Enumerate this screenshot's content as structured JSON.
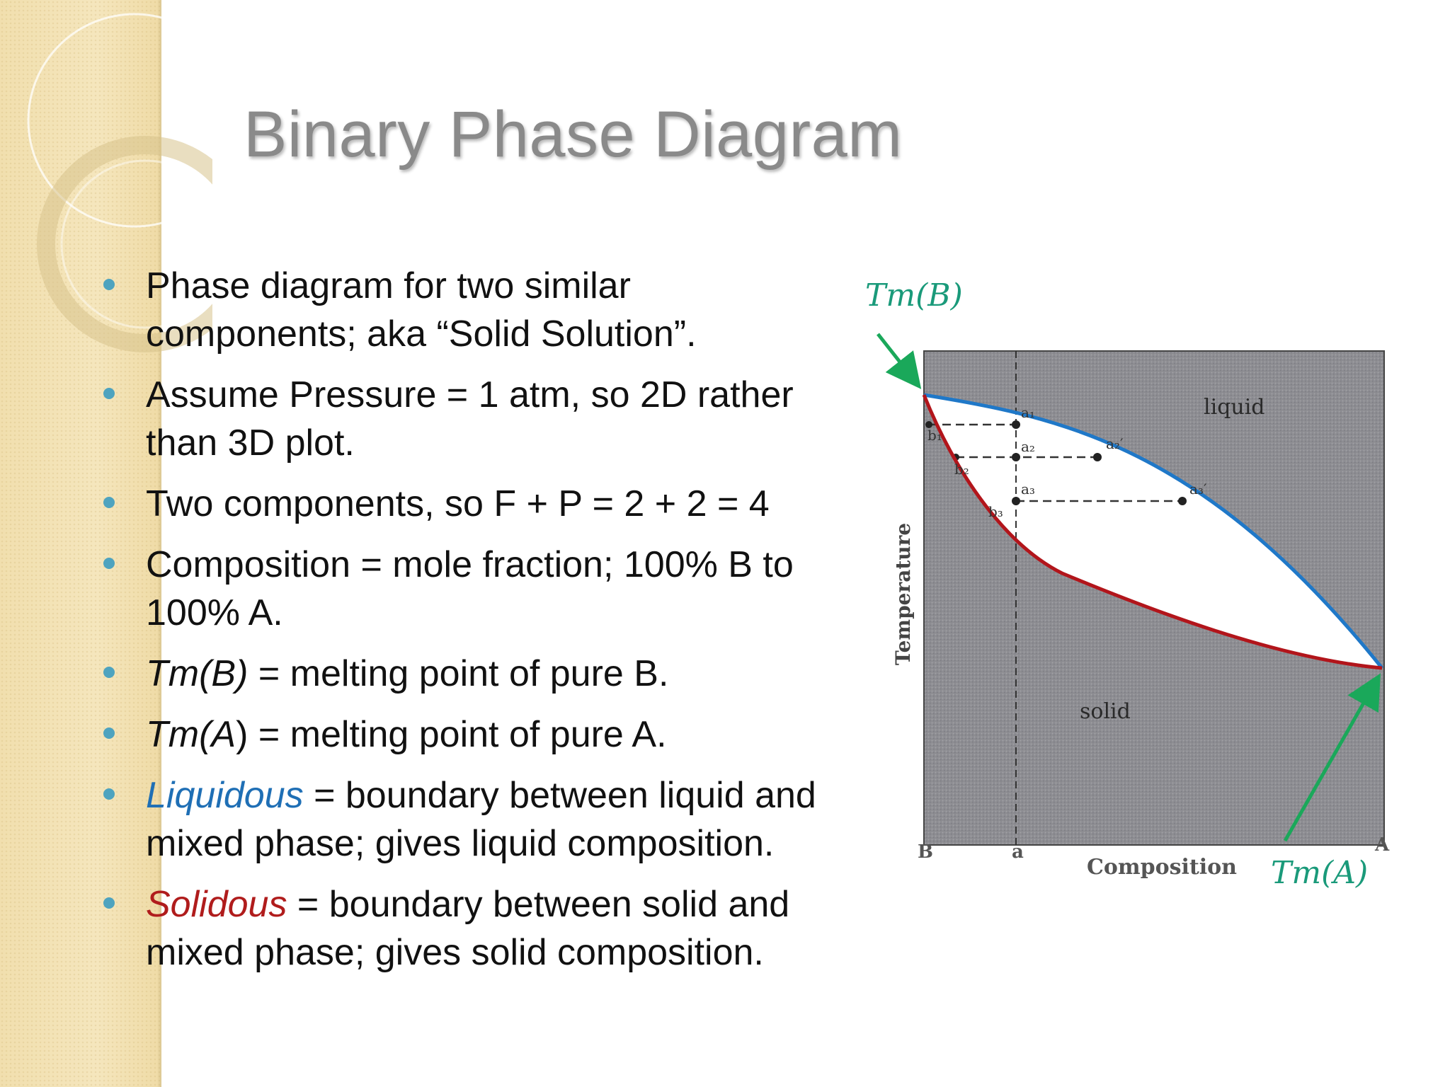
{
  "slide": {
    "title": "Binary Phase Diagram",
    "bullets": [
      {
        "parts": [
          {
            "text": "Phase diagram for two similar components; aka “Solid Solution”.",
            "style": "plain"
          }
        ]
      },
      {
        "parts": [
          {
            "text": "Assume Pressure = 1 atm, so 2D rather than 3D plot.",
            "style": "plain"
          }
        ]
      },
      {
        "parts": [
          {
            "text": "Two components, so F + P = 2 + 2 = 4",
            "style": "plain"
          }
        ]
      },
      {
        "parts": [
          {
            "text": "Composition = mole fraction; 100% B to 100% A.",
            "style": "plain"
          }
        ]
      },
      {
        "parts": [
          {
            "text": "Tm(B)",
            "style": "em"
          },
          {
            "text": " = melting point of pure B.",
            "style": "plain"
          }
        ]
      },
      {
        "parts": [
          {
            "text": "Tm(A",
            "style": "em"
          },
          {
            "text": ") = melting point of pure A.",
            "style": "plain"
          }
        ]
      },
      {
        "parts": [
          {
            "text": "Liquidous",
            "style": "liq"
          },
          {
            "text": " = boundary between liquid and mixed phase; gives liquid composition.",
            "style": "plain"
          }
        ]
      },
      {
        "parts": [
          {
            "text": "Solidous",
            "style": "sol"
          },
          {
            "text": " = boundary between solid and mixed phase; gives solid composition.",
            "style": "plain"
          }
        ]
      }
    ]
  },
  "figure": {
    "tm_b_label": "Tm(B)",
    "tm_a_label": "Tm(A)",
    "region_liquid": "liquid",
    "region_solid": "solid",
    "y_axis_label": "Temperature",
    "x_axis_label": "Composition",
    "x_tick_b": "B",
    "x_tick_a_comp": "a",
    "x_tick_a": "A",
    "points": {
      "a1": "a₁",
      "a2": "a₂",
      "a3": "a₃",
      "b1": "b₁",
      "b2": "b₂",
      "b3": "b₃",
      "a2p": "a₂′",
      "a3p": "a₃′"
    },
    "colors": {
      "liquidus": "#1f78c8",
      "solidus": "#b2151b",
      "arrow": "#1aa85a",
      "label_teal": "#1a9a7a"
    }
  }
}
